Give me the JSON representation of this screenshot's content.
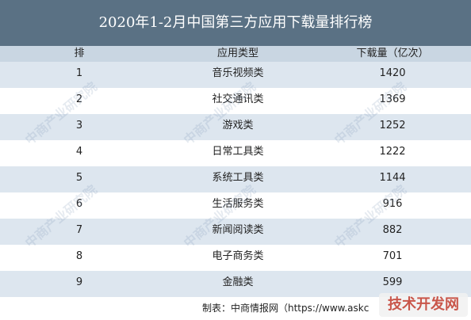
{
  "chart_data": {
    "type": "table",
    "title": "2020年1-2月中国第三方应用下载量排行榜",
    "columns": [
      "排名",
      "应用类型",
      "下载量（亿次）"
    ],
    "rows": [
      {
        "rank": "1",
        "category": "音乐视频类",
        "downloads": "1420"
      },
      {
        "rank": "2",
        "category": "社交通讯类",
        "downloads": "1369"
      },
      {
        "rank": "3",
        "category": "游戏类",
        "downloads": "1252"
      },
      {
        "rank": "4",
        "category": "日常工具类",
        "downloads": "1222"
      },
      {
        "rank": "5",
        "category": "系统工具类",
        "downloads": "1144"
      },
      {
        "rank": "6",
        "category": "生活服务类",
        "downloads": "916"
      },
      {
        "rank": "7",
        "category": "新闻阅读类",
        "downloads": "882"
      },
      {
        "rank": "8",
        "category": "电子商务类",
        "downloads": "701"
      },
      {
        "rank": "9",
        "category": "金融类",
        "downloads": "599"
      }
    ],
    "source": "制表：中商情报网（https://www.askc",
    "watermark": "中商产业研究院",
    "corner_logo": "技术开发网"
  }
}
